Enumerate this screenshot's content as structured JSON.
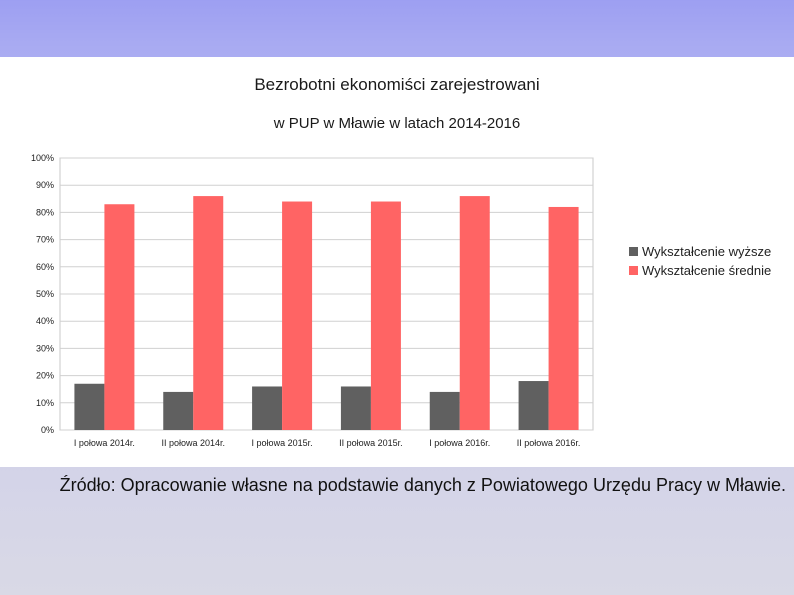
{
  "chart_data": {
    "type": "bar",
    "title": "Bezrobotni ekonomiści zarejestrowani",
    "subtitle": "w PUP w Mławie w latach 2014-2016",
    "categories": [
      "I połowa 2014r.",
      "II połowa 2014r.",
      "I połowa 2015r.",
      "II połowa 2015r.",
      "I połowa 2016r.",
      "II połowa 2016r."
    ],
    "series": [
      {
        "name": "Wykształcenie wyższe",
        "color": "#606060",
        "values": [
          17,
          14,
          16,
          16,
          14,
          18
        ]
      },
      {
        "name": "Wykształcenie średnie",
        "color": "#ff6464",
        "values": [
          83,
          86,
          84,
          84,
          86,
          82
        ]
      }
    ],
    "ylim": [
      0,
      100
    ],
    "yticks": [
      "0%",
      "10%",
      "20%",
      "30%",
      "40%",
      "50%",
      "60%",
      "70%",
      "80%",
      "90%",
      "100%"
    ],
    "grid": true,
    "legend_position": "right"
  },
  "source_text": "Źródło: Opracowanie własne na podstawie danych z Powiatowego Urzędu Pracy w Mławie."
}
